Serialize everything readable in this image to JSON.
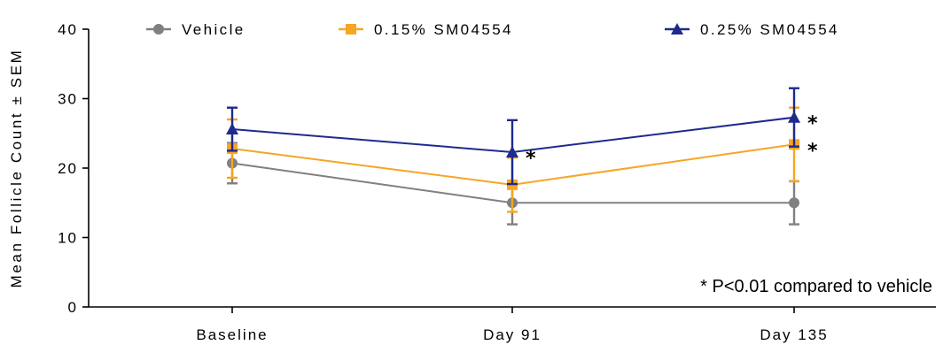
{
  "chart_data": {
    "type": "line",
    "categories": [
      "Baseline",
      "Day 91",
      "Day 135"
    ],
    "ylabel": "Mean Follicle Count ± SEM",
    "xlabel": "",
    "ylim": [
      0,
      40
    ],
    "yticks": [
      0,
      10,
      20,
      30,
      40
    ],
    "grid": false,
    "legend_position": "top",
    "series": [
      {
        "name": "Vehicle",
        "color": "#808080",
        "marker": "circle",
        "values": [
          20.7,
          15.0,
          15.0
        ],
        "errors": [
          2.9,
          3.1,
          3.1
        ],
        "sig": [
          false,
          false,
          false
        ]
      },
      {
        "name": "0.15% SM04554",
        "color": "#F5A623",
        "marker": "square",
        "values": [
          22.8,
          17.6,
          23.4
        ],
        "errors": [
          4.2,
          3.9,
          5.3
        ],
        "sig": [
          false,
          false,
          true
        ]
      },
      {
        "name": "0.25% SM04554",
        "color": "#1F2A8C",
        "marker": "triangle",
        "values": [
          25.6,
          22.3,
          27.3
        ],
        "errors": [
          3.1,
          4.6,
          4.2
        ],
        "sig": [
          false,
          true,
          true
        ]
      }
    ],
    "significance_symbol": "*",
    "annotation": "* P<0.01 compared to vehicle"
  }
}
